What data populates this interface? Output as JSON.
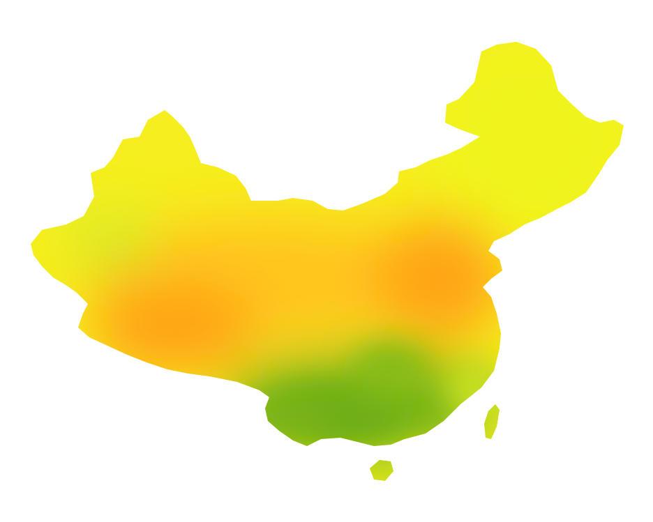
{
  "map": {
    "kind": "choropleth-heatmap",
    "background_color": "#ffffff",
    "region_shown": "country-outline",
    "color_scale": {
      "high": "#ff9c10",
      "mid_high": "#ffc21a",
      "mid": "#fff01e",
      "low_mid": "#cfe41e",
      "low": "#6fae14"
    },
    "zones": [
      {
        "name": "south-west-high",
        "color": "#ffa414",
        "intensity": 0.95
      },
      {
        "name": "north-china-plain-high",
        "color": "#ffa418",
        "intensity": 0.9
      },
      {
        "name": "central-belt-orange",
        "color": "#ffc61c",
        "intensity": 0.7
      },
      {
        "name": "north-east-yellow",
        "color": "#f0f41e",
        "intensity": 0.35
      },
      {
        "name": "north-west-basin-green",
        "color": "#d2ec28",
        "intensity": 0.2
      },
      {
        "name": "south-green-low",
        "color": "#6fb014",
        "intensity": 0.05
      }
    ],
    "legend": null,
    "title": ""
  }
}
